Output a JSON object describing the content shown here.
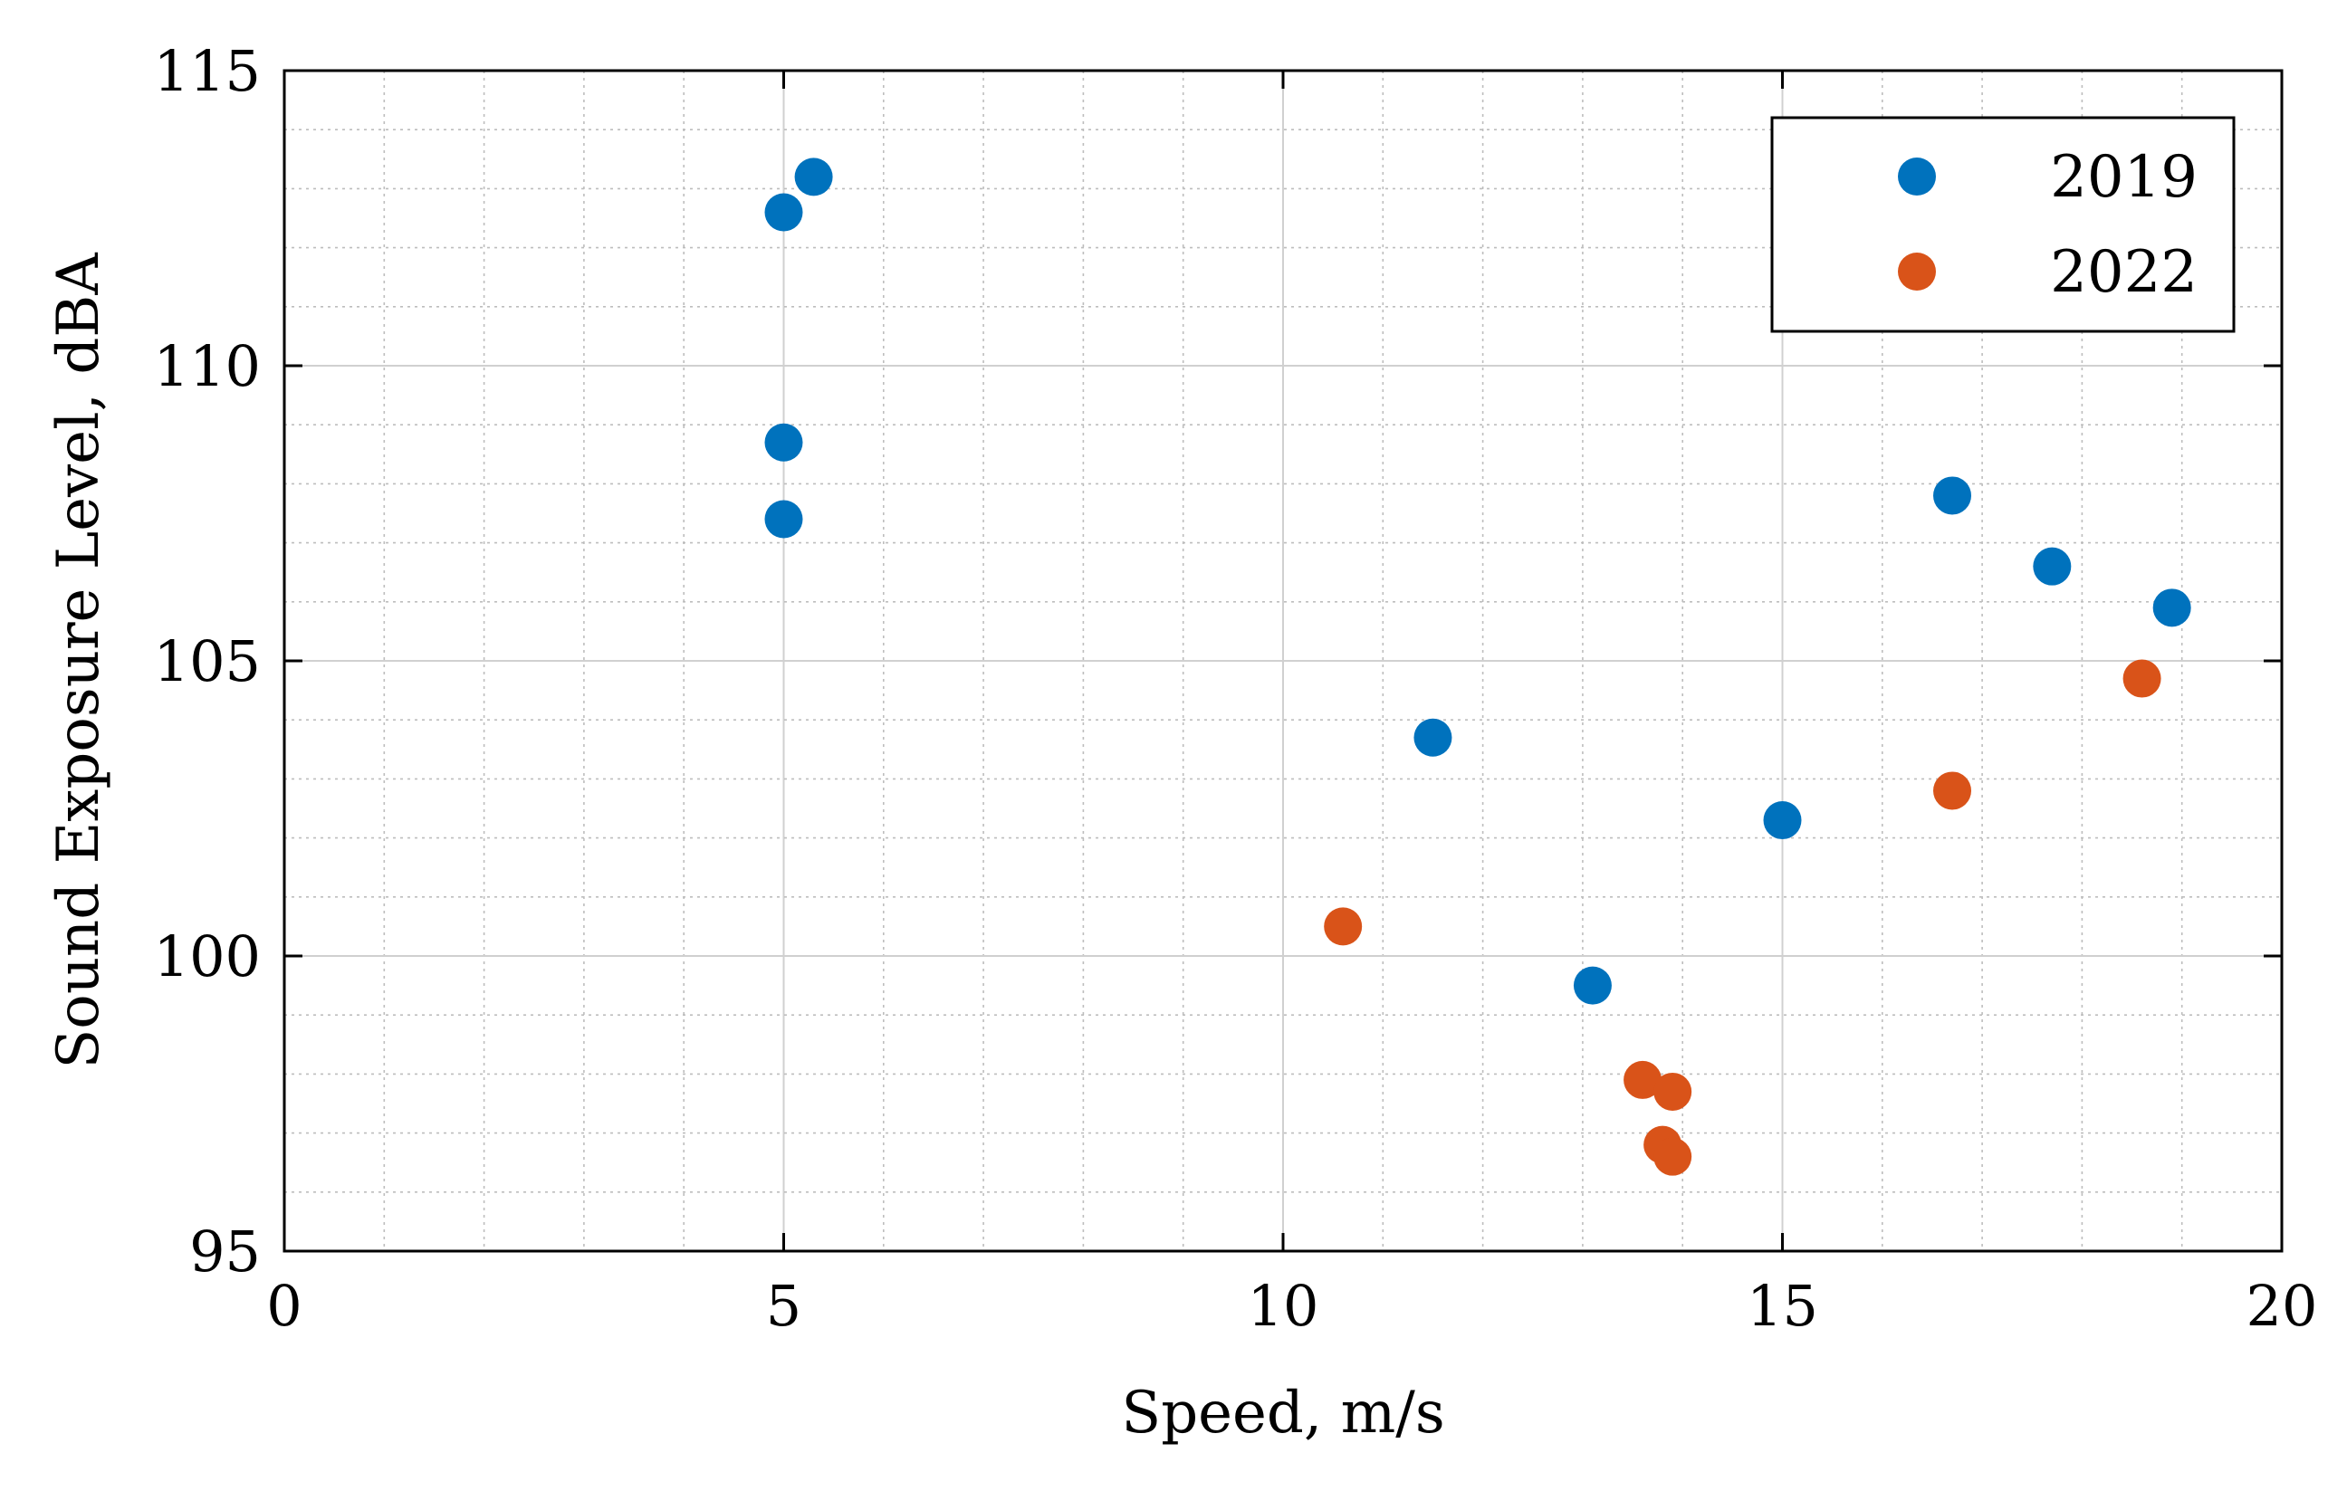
{
  "chart_data": {
    "type": "scatter",
    "xlabel": "Speed, m/s",
    "ylabel": "Sound Exposure Level, dBA",
    "xlim": [
      0,
      20
    ],
    "ylim": [
      95,
      115
    ],
    "xticks": [
      0,
      5,
      10,
      15,
      20
    ],
    "yticks": [
      95,
      100,
      105,
      110,
      115
    ],
    "x_tick_labels": [
      "0",
      "5",
      "10",
      "15",
      "20"
    ],
    "y_tick_labels": [
      "95",
      "100",
      "105",
      "110",
      "115"
    ],
    "grid": "major and minor",
    "legend_position": "top-right",
    "series": [
      {
        "name": "2019",
        "color": "#0072BD",
        "points": [
          {
            "x": 5.0,
            "y": 112.6
          },
          {
            "x": 5.3,
            "y": 113.2
          },
          {
            "x": 5.0,
            "y": 108.7
          },
          {
            "x": 5.0,
            "y": 107.4
          },
          {
            "x": 11.5,
            "y": 103.7
          },
          {
            "x": 13.1,
            "y": 99.5
          },
          {
            "x": 15.0,
            "y": 102.3
          },
          {
            "x": 16.7,
            "y": 107.8
          },
          {
            "x": 17.7,
            "y": 106.6
          },
          {
            "x": 18.9,
            "y": 105.9
          }
        ]
      },
      {
        "name": "2022",
        "color": "#D95319",
        "points": [
          {
            "x": 10.6,
            "y": 100.5
          },
          {
            "x": 13.6,
            "y": 97.9
          },
          {
            "x": 13.9,
            "y": 97.7
          },
          {
            "x": 13.8,
            "y": 96.8
          },
          {
            "x": 13.9,
            "y": 96.6
          },
          {
            "x": 16.7,
            "y": 102.8
          },
          {
            "x": 18.6,
            "y": 104.7
          }
        ]
      }
    ]
  }
}
